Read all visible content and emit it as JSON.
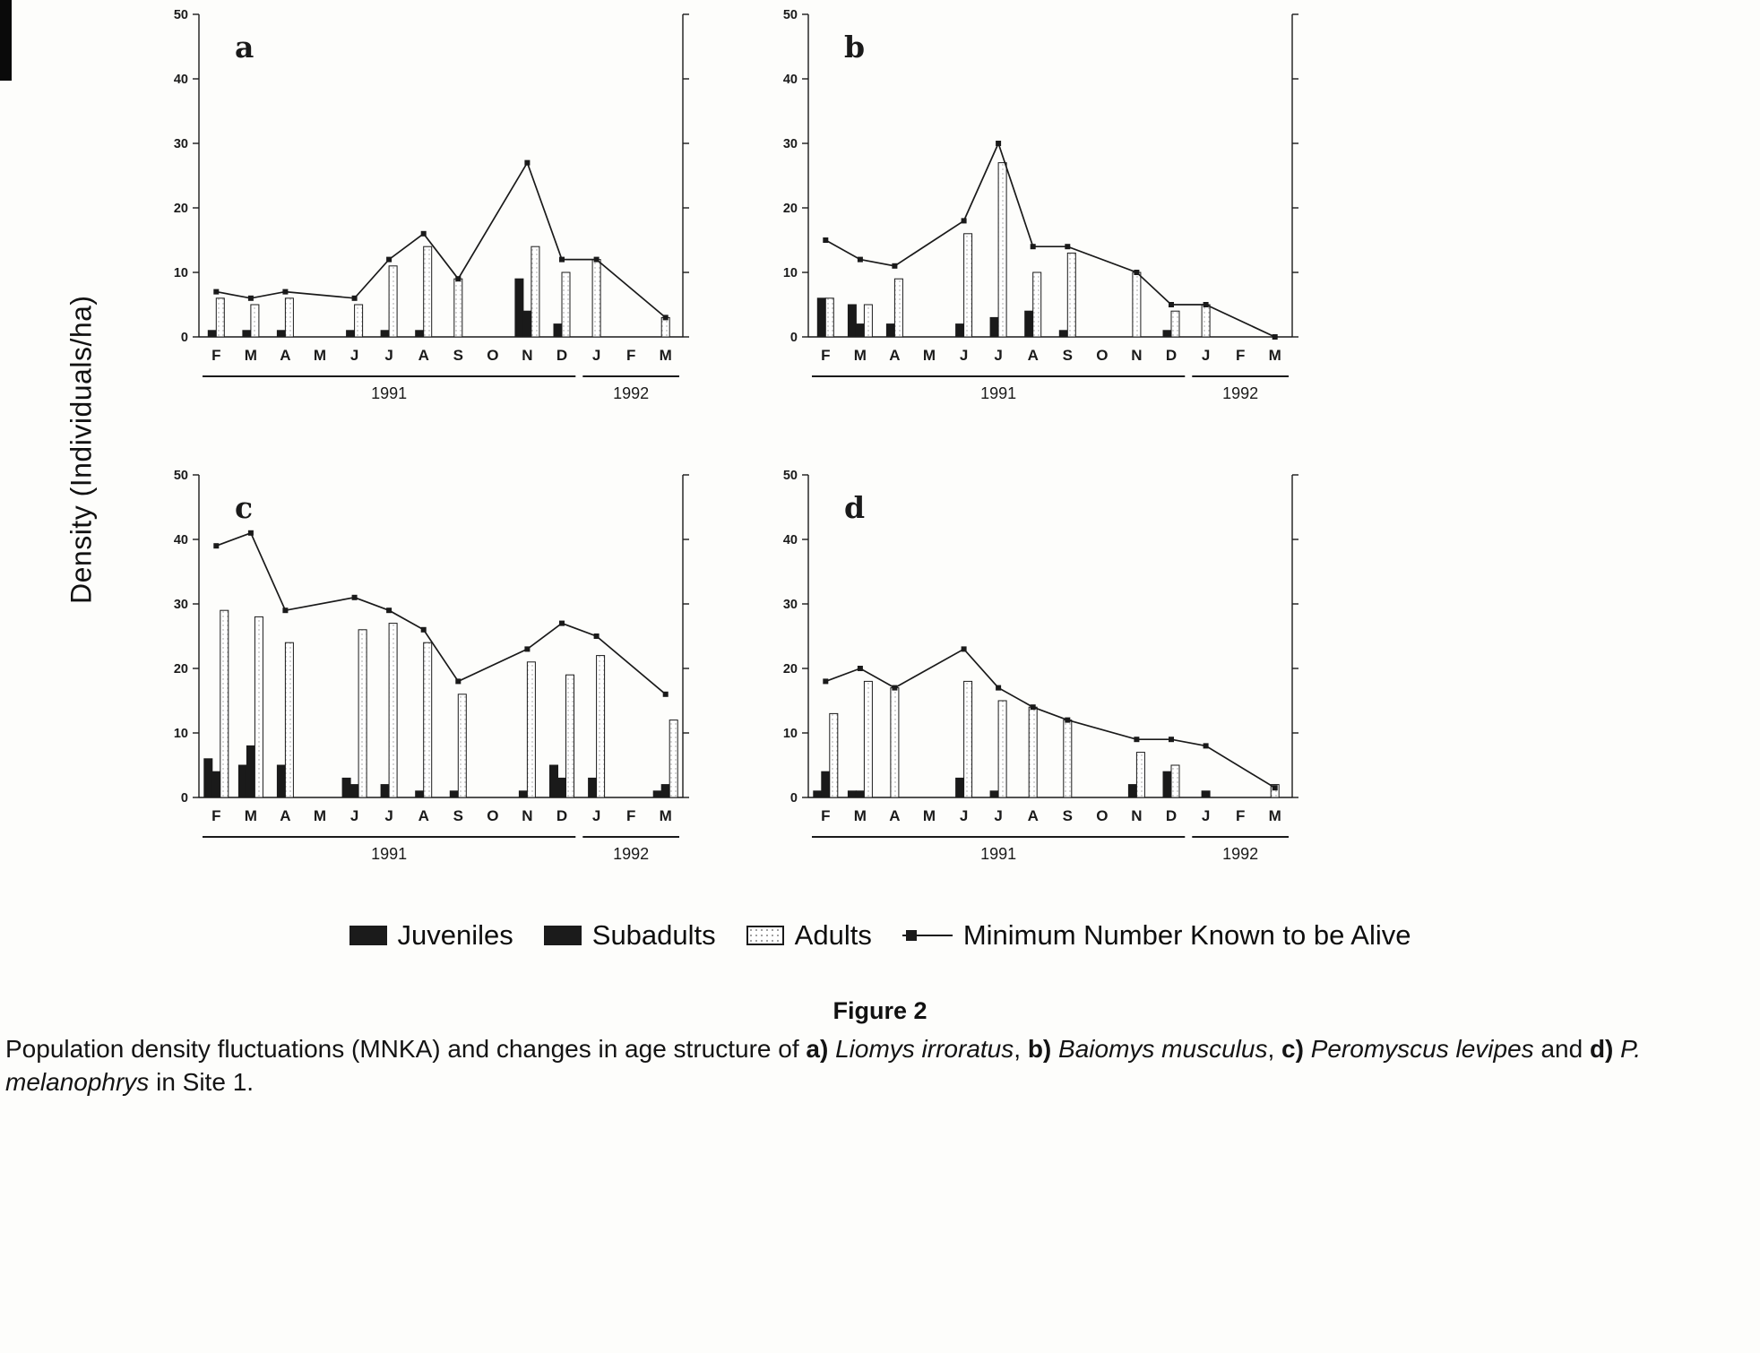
{
  "figure": {
    "y_axis_label": "Density (Individuals/ha)",
    "figure_label": "Figure 2",
    "caption_segments": [
      {
        "t": "Population density fluctuations (MNKA) and changes in age structure of "
      },
      {
        "t": "a)",
        "b": true
      },
      {
        "t": " "
      },
      {
        "t": "Liomys irroratus",
        "i": true
      },
      {
        "t": ", "
      },
      {
        "t": "b)",
        "b": true
      },
      {
        "t": " "
      },
      {
        "t": "Baiomys musculus",
        "i": true
      },
      {
        "t": ", "
      },
      {
        "t": "c)",
        "b": true
      },
      {
        "t": " "
      },
      {
        "t": "Peromyscus levipes",
        "i": true
      },
      {
        "t": " and "
      },
      {
        "t": "d)",
        "b": true
      },
      {
        "t": " "
      },
      {
        "t": "P. melanophrys",
        "i": true
      },
      {
        "t": " in Site 1."
      }
    ],
    "legend": {
      "items": [
        {
          "key": "juveniles",
          "label": "Juveniles",
          "swatch": "solid-dark"
        },
        {
          "key": "subadults",
          "label": "Subadults",
          "swatch": "solid-dark"
        },
        {
          "key": "adults",
          "label": "Adults",
          "swatch": "dotted-light"
        },
        {
          "key": "mnka",
          "label": "Minimum Number Known to be Alive",
          "swatch": "line-marker"
        }
      ]
    },
    "colors": {
      "ink": "#1a1a1a",
      "adults_fill": "#ffffff",
      "adults_dot": "#9a9a9a",
      "paper": "#fdfdfb"
    }
  },
  "chart_data": [
    {
      "id": "a",
      "panel_label": "a",
      "type": "bar",
      "categories": [
        "F",
        "M",
        "A",
        "M",
        "J",
        "J",
        "A",
        "S",
        "O",
        "N",
        "D",
        "J",
        "F",
        "M"
      ],
      "ylim": [
        0,
        50
      ],
      "yticks": [
        0,
        10,
        20,
        30,
        40,
        50
      ],
      "year_groups": [
        {
          "label": "1991",
          "start": 0,
          "end": 10
        },
        {
          "label": "1992",
          "start": 11,
          "end": 13
        }
      ],
      "series": [
        {
          "name": "Juveniles",
          "values": [
            1,
            1,
            1,
            0,
            1,
            1,
            1,
            0,
            0,
            9,
            2,
            0,
            0,
            0
          ]
        },
        {
          "name": "Subadults",
          "values": [
            0,
            0,
            0,
            0,
            0,
            0,
            0,
            0,
            0,
            4,
            0,
            0,
            0,
            0
          ]
        },
        {
          "name": "Adults",
          "values": [
            6,
            5,
            6,
            0,
            5,
            11,
            14,
            9,
            0,
            14,
            10,
            12,
            0,
            3
          ]
        }
      ],
      "line_series": {
        "name": "Minimum Number Known to be Alive",
        "values": [
          7,
          6,
          7,
          null,
          6,
          12,
          16,
          9,
          null,
          27,
          12,
          12,
          null,
          3
        ]
      }
    },
    {
      "id": "b",
      "panel_label": "b",
      "type": "bar",
      "categories": [
        "F",
        "M",
        "A",
        "M",
        "J",
        "J",
        "A",
        "S",
        "O",
        "N",
        "D",
        "J",
        "F",
        "M"
      ],
      "ylim": [
        0,
        50
      ],
      "yticks": [
        0,
        10,
        20,
        30,
        40,
        50
      ],
      "year_groups": [
        {
          "label": "1991",
          "start": 0,
          "end": 10
        },
        {
          "label": "1992",
          "start": 11,
          "end": 13
        }
      ],
      "series": [
        {
          "name": "Juveniles",
          "values": [
            6,
            5,
            2,
            0,
            2,
            3,
            4,
            1,
            0,
            0,
            1,
            0,
            0,
            0
          ]
        },
        {
          "name": "Subadults",
          "values": [
            0,
            2,
            0,
            0,
            0,
            0,
            0,
            0,
            0,
            0,
            0,
            0,
            0,
            0
          ]
        },
        {
          "name": "Adults",
          "values": [
            6,
            5,
            9,
            0,
            16,
            27,
            10,
            13,
            0,
            10,
            4,
            5,
            0,
            0
          ]
        }
      ],
      "line_series": {
        "name": "Minimum Number Known to be Alive",
        "values": [
          15,
          12,
          11,
          null,
          18,
          30,
          14,
          14,
          null,
          10,
          5,
          5,
          null,
          0
        ]
      }
    },
    {
      "id": "c",
      "panel_label": "c",
      "type": "bar",
      "categories": [
        "F",
        "M",
        "A",
        "M",
        "J",
        "J",
        "A",
        "S",
        "O",
        "N",
        "D",
        "J",
        "F",
        "M"
      ],
      "ylim": [
        0,
        50
      ],
      "yticks": [
        0,
        10,
        20,
        30,
        40,
        50
      ],
      "year_groups": [
        {
          "label": "1991",
          "start": 0,
          "end": 10
        },
        {
          "label": "1992",
          "start": 11,
          "end": 13
        }
      ],
      "series": [
        {
          "name": "Juveniles",
          "values": [
            6,
            5,
            5,
            0,
            3,
            2,
            1,
            1,
            0,
            1,
            5,
            3,
            0,
            1
          ]
        },
        {
          "name": "Subadults",
          "values": [
            4,
            8,
            0,
            0,
            2,
            0,
            0,
            0,
            0,
            0,
            3,
            0,
            0,
            2
          ]
        },
        {
          "name": "Adults",
          "values": [
            29,
            28,
            24,
            0,
            26,
            27,
            24,
            16,
            0,
            21,
            19,
            22,
            0,
            12
          ]
        }
      ],
      "line_series": {
        "name": "Minimum Number Known to be Alive",
        "values": [
          39,
          41,
          29,
          null,
          31,
          29,
          26,
          18,
          null,
          23,
          27,
          25,
          null,
          16
        ]
      }
    },
    {
      "id": "d",
      "panel_label": "d",
      "type": "bar",
      "categories": [
        "F",
        "M",
        "A",
        "M",
        "J",
        "J",
        "A",
        "S",
        "O",
        "N",
        "D",
        "J",
        "F",
        "M"
      ],
      "ylim": [
        0,
        50
      ],
      "yticks": [
        0,
        10,
        20,
        30,
        40,
        50
      ],
      "year_groups": [
        {
          "label": "1991",
          "start": 0,
          "end": 10
        },
        {
          "label": "1992",
          "start": 11,
          "end": 13
        }
      ],
      "series": [
        {
          "name": "Juveniles",
          "values": [
            1,
            1,
            0,
            0,
            3,
            1,
            0,
            0,
            0,
            2,
            4,
            1,
            0,
            0
          ]
        },
        {
          "name": "Subadults",
          "values": [
            4,
            1,
            0,
            0,
            0,
            0,
            0,
            0,
            0,
            0,
            0,
            0,
            0,
            0
          ]
        },
        {
          "name": "Adults",
          "values": [
            13,
            18,
            17,
            0,
            18,
            15,
            14,
            12,
            0,
            7,
            5,
            0,
            0,
            2
          ]
        }
      ],
      "line_series": {
        "name": "Minimum Number Known to be Alive",
        "values": [
          18,
          20,
          17,
          null,
          23,
          17,
          14,
          12,
          null,
          9,
          9,
          8,
          null,
          1.5
        ]
      }
    }
  ]
}
